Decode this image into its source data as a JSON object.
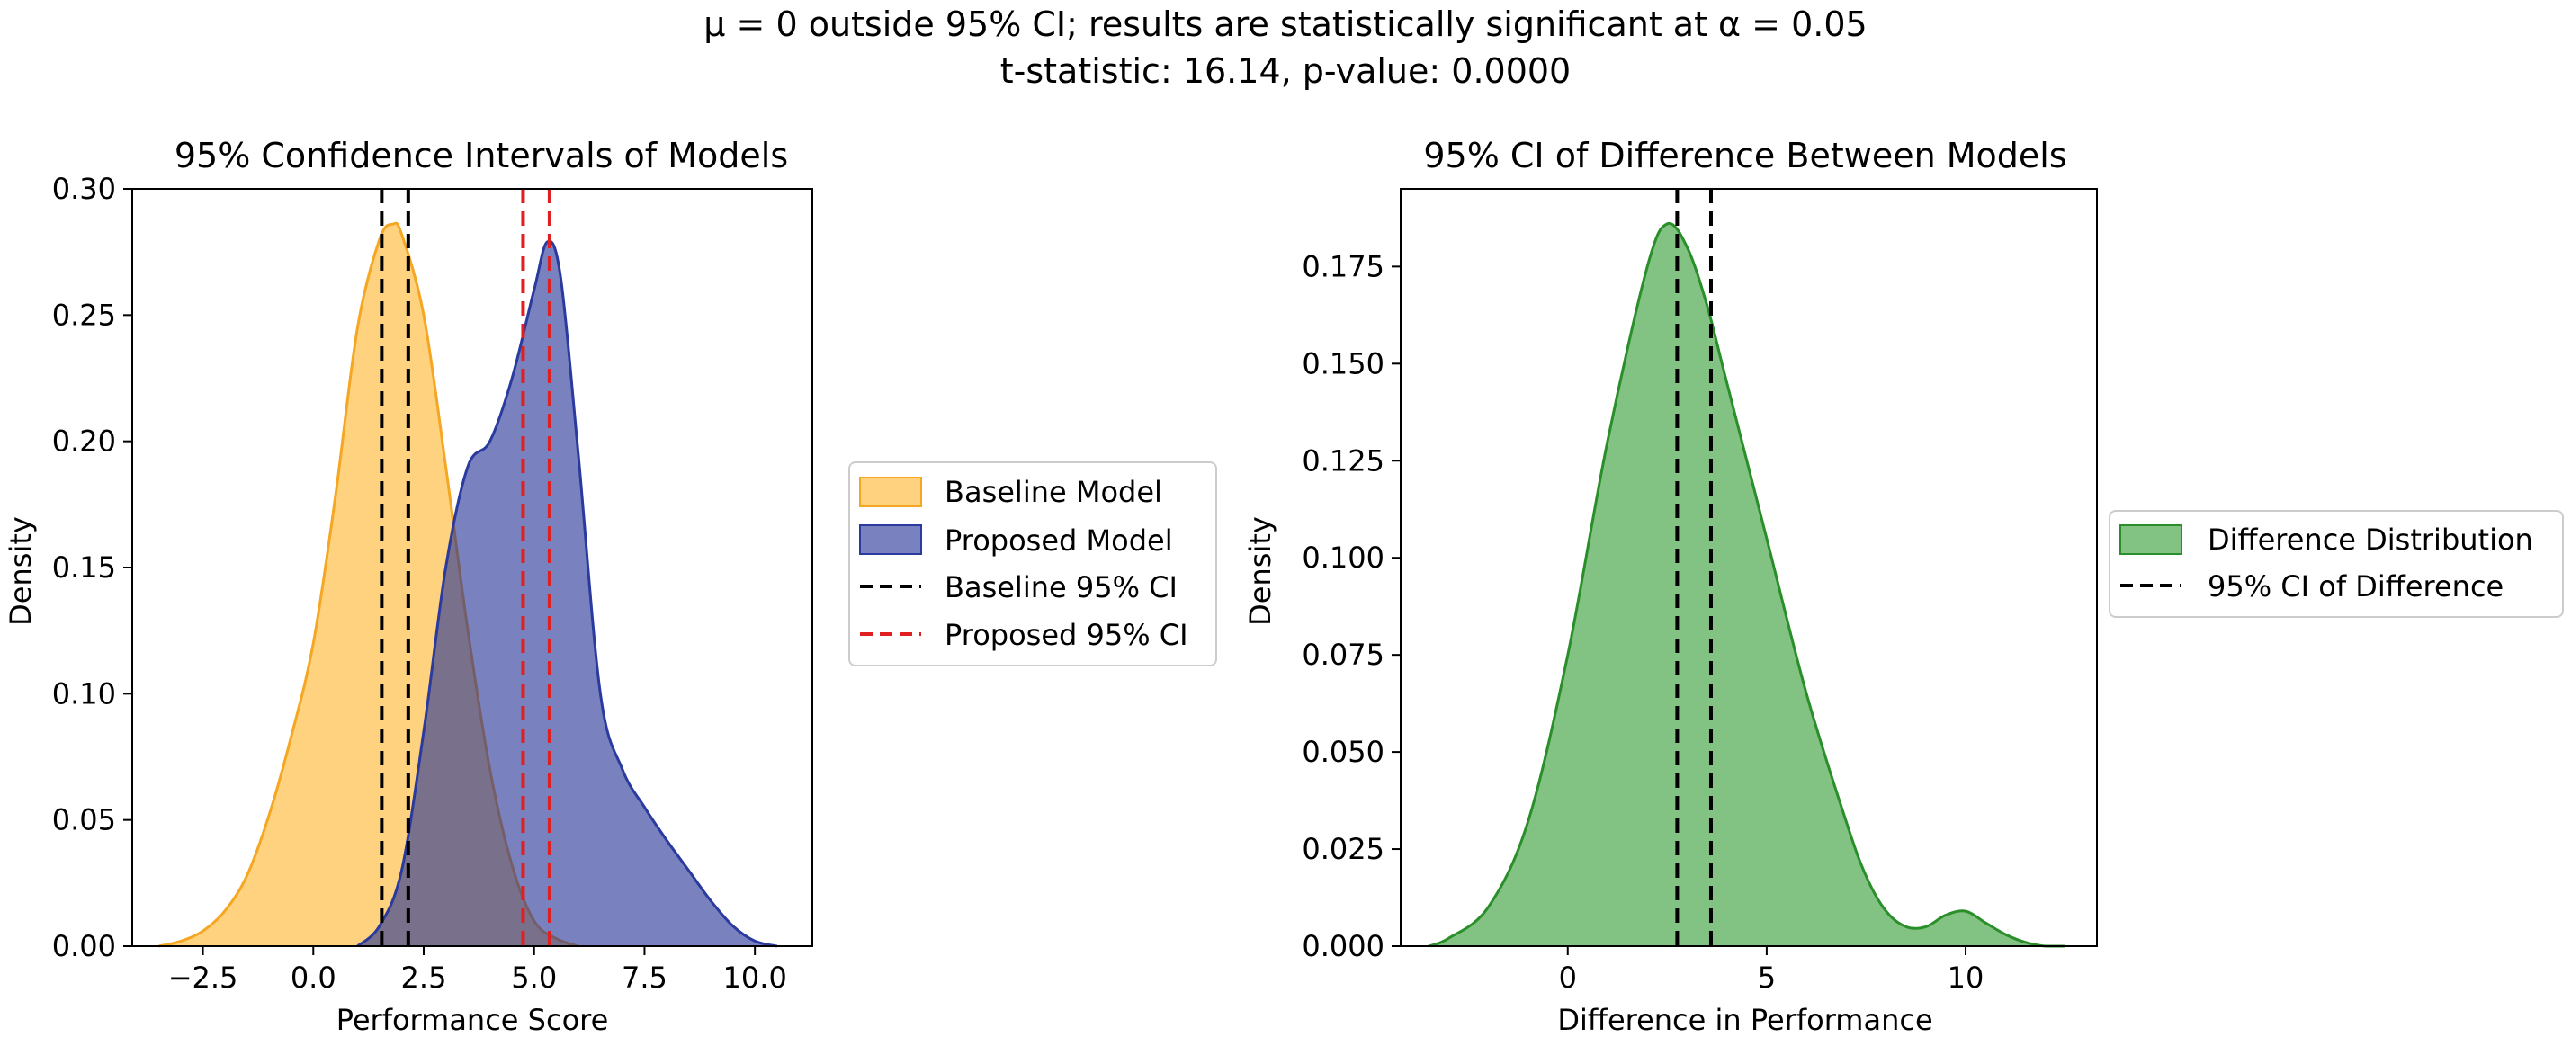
{
  "suptitle": {
    "line1": "μ = 0 outside 95% CI; results are statistically significant at α = 0.05",
    "line2": "t-statistic: 16.14, p-value: 0.0000"
  },
  "chart_data": [
    {
      "type": "area",
      "title": "95% Confidence Intervals of Models",
      "xlabel": "Performance Score",
      "ylabel": "Density",
      "xlim": [
        -4.1,
        11.3
      ],
      "ylim": [
        0,
        0.3
      ],
      "xticks": [
        -2.5,
        0.0,
        2.5,
        5.0,
        7.5,
        10.0
      ],
      "xtick_labels": [
        "−2.5",
        "0.0",
        "2.5",
        "5.0",
        "7.5",
        "10.0"
      ],
      "yticks": [
        0.0,
        0.05,
        0.1,
        0.15,
        0.2,
        0.25,
        0.3
      ],
      "ytick_labels": [
        "0.00",
        "0.05",
        "0.10",
        "0.15",
        "0.20",
        "0.25",
        "0.30"
      ],
      "grid": false,
      "legend_position": "outside-right",
      "series": [
        {
          "name": "Baseline Model",
          "kind": "kde-fill",
          "color": "#FFA500",
          "edge": "#F5A623",
          "x": [
            -3.5,
            -3.0,
            -2.5,
            -2.0,
            -1.5,
            -1.0,
            -0.5,
            0.0,
            0.5,
            1.0,
            1.5,
            1.8,
            2.0,
            2.5,
            3.0,
            3.5,
            4.0,
            4.5,
            5.0,
            5.5,
            6.0
          ],
          "y": [
            0.0,
            0.002,
            0.006,
            0.014,
            0.028,
            0.052,
            0.083,
            0.12,
            0.178,
            0.245,
            0.28,
            0.286,
            0.282,
            0.25,
            0.19,
            0.125,
            0.07,
            0.032,
            0.01,
            0.003,
            0.0
          ]
        },
        {
          "name": "Proposed Model",
          "kind": "kde-fill",
          "color": "#1F2E94",
          "edge": "#2A3A9E",
          "x": [
            1.0,
            1.5,
            2.0,
            2.5,
            3.0,
            3.5,
            4.0,
            4.5,
            5.0,
            5.3,
            5.6,
            6.0,
            6.5,
            7.0,
            7.5,
            8.0,
            8.5,
            9.0,
            9.5,
            10.0,
            10.5
          ],
          "y": [
            0.0,
            0.008,
            0.03,
            0.085,
            0.15,
            0.19,
            0.2,
            0.225,
            0.26,
            0.279,
            0.265,
            0.195,
            0.1,
            0.07,
            0.055,
            0.042,
            0.03,
            0.018,
            0.008,
            0.002,
            0.0
          ]
        },
        {
          "name": "Baseline 95% CI",
          "kind": "vlines",
          "color": "#000000",
          "x": [
            1.55,
            2.15
          ]
        },
        {
          "name": "Proposed 95% CI",
          "kind": "vlines",
          "color": "#E02020",
          "x": [
            4.75,
            5.35
          ]
        }
      ]
    },
    {
      "type": "area",
      "title": "95% CI of Difference Between Models",
      "xlabel": "Difference in Performance",
      "ylabel": "Density",
      "xlim": [
        -4.2,
        13.3
      ],
      "ylim": [
        0,
        0.195
      ],
      "xticks": [
        0,
        5,
        10
      ],
      "xtick_labels": [
        "0",
        "5",
        "10"
      ],
      "yticks": [
        0.0,
        0.025,
        0.05,
        0.075,
        0.1,
        0.125,
        0.15,
        0.175
      ],
      "ytick_labels": [
        "0.000",
        "0.025",
        "0.050",
        "0.075",
        "0.100",
        "0.125",
        "0.150",
        "0.175"
      ],
      "grid": false,
      "legend_position": "outside-right",
      "series": [
        {
          "name": "Difference Distribution",
          "kind": "kde-fill",
          "color": "#2E9A2E",
          "edge": "#2A8F2A",
          "x": [
            -3.5,
            -3.0,
            -2.0,
            -1.0,
            0.0,
            1.0,
            2.0,
            2.5,
            3.0,
            3.5,
            4.0,
            5.0,
            6.0,
            7.0,
            7.5,
            8.0,
            8.5,
            9.0,
            9.5,
            10.0,
            10.5,
            11.0,
            11.5,
            12.0,
            12.5
          ],
          "y": [
            0.0,
            0.002,
            0.01,
            0.032,
            0.075,
            0.13,
            0.175,
            0.186,
            0.18,
            0.165,
            0.145,
            0.105,
            0.065,
            0.032,
            0.018,
            0.009,
            0.005,
            0.005,
            0.008,
            0.009,
            0.006,
            0.003,
            0.001,
            0.0,
            0.0
          ]
        },
        {
          "name": "95% CI of Difference",
          "kind": "vlines",
          "color": "#000000",
          "x": [
            2.75,
            3.6
          ]
        }
      ]
    }
  ]
}
